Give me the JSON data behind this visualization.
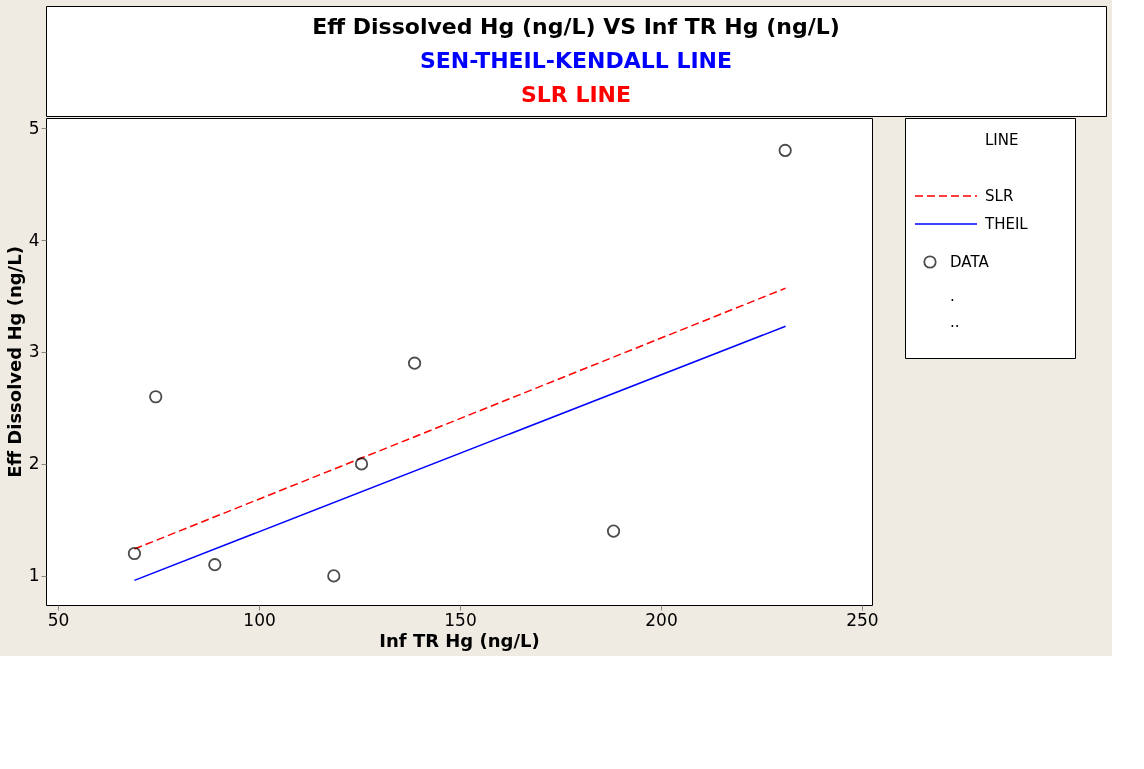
{
  "chart_data": {
    "type": "scatter",
    "title": "Eff Dissolved Hg (ng/L) VS Inf TR Hg  (ng/L)",
    "subtitle": [
      "SEN-THEIL-KENDALL LINE",
      "SLR LINE"
    ],
    "xlabel": "Inf TR Hg  (ng/L)",
    "ylabel": "Eff Dissolved Hg (ng/L)",
    "legend_title": "LINE",
    "xlim": [
      47,
      252.5
    ],
    "xticks": [
      50,
      100,
      150,
      200,
      250
    ],
    "ylim": [
      0.74,
      5.09
    ],
    "yticks": [
      {
        "value": 1,
        "label": "1"
      },
      {
        "value": 2,
        "label": "2"
      },
      {
        "value": 3,
        "label": "3"
      },
      {
        "value": 4,
        "label": "4"
      },
      {
        "value": 5,
        "label": "5"
      }
    ],
    "grid": false,
    "legend": "right",
    "series": [
      {
        "name": "SLR",
        "type": "line",
        "marker": "none",
        "line_style": "dashed",
        "color": "#ff0000",
        "x": [
          69,
          231
        ],
        "values": [
          1.24,
          3.57
        ]
      },
      {
        "name": "THEIL",
        "type": "line",
        "marker": "none",
        "line_style": "solid",
        "color": "#0000ff",
        "x": [
          69,
          231
        ],
        "values": [
          0.96,
          3.23
        ]
      },
      {
        "name": "DATA",
        "marker": "circle",
        "color": "#000000",
        "x": [
          69,
          74.3,
          89,
          118.6,
          125.5,
          138.7,
          188.2,
          230.9
        ],
        "values": [
          1.2,
          2.6,
          1.1,
          1.0,
          2.0,
          2.9,
          1.4,
          4.8
        ]
      }
    ],
    "annotations": [
      ".",
      ".."
    ]
  }
}
